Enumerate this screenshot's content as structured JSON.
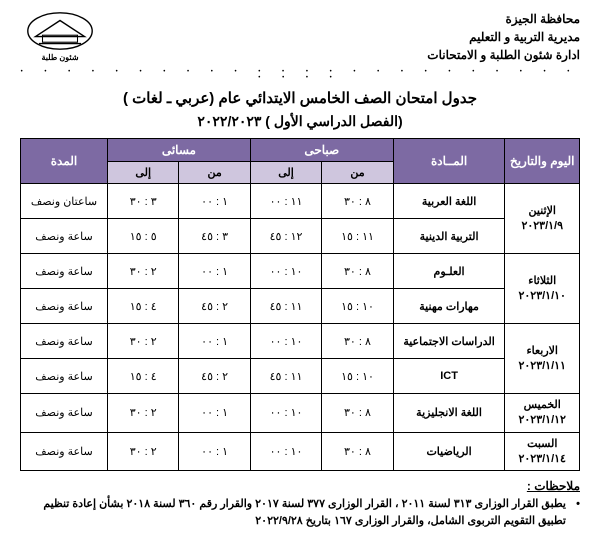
{
  "ministry": {
    "line1": "محافظة الجيزة",
    "line2": "مديرية التربية و التعليم",
    "line3": "ادارة شئون الطلبة و الامتحانات"
  },
  "logo_caption": "شئون طلبة",
  "title": "جدول امتحان الصف الخامس الايتدائي عام (عربي ـ لغات )",
  "subtitle": "(الفصل الدراسي الأول ) ٢٠٢٢/٢٠٢٣",
  "colors": {
    "header_main_bg": "#7d6aa3",
    "header_main_fg": "#ffffff",
    "header_sub_bg": "#cfc6de",
    "border": "#000000"
  },
  "columns": {
    "day": "اليوم والتاريخ",
    "subject": "المــادة",
    "morning": "صباحى",
    "evening": "مسائى",
    "from": "من",
    "to": "إلى",
    "duration": "المدة"
  },
  "days": [
    {
      "label": "الإثنين\n٢٠٢٣/١/٩",
      "rows": [
        {
          "subject": "اللغة العربية",
          "m_from": "٨ : ٣٠",
          "m_to": "١١ : ٠٠",
          "e_from": "١ : ٠٠",
          "e_to": "٣ : ٣٠",
          "duration": "ساعتان ونصف"
        },
        {
          "subject": "التربية الدينية",
          "m_from": "١١ : ١٥",
          "m_to": "١٢ : ٤٥",
          "e_from": "٣ : ٤٥",
          "e_to": "٥ : ١٥",
          "duration": "ساعة ونصف"
        }
      ]
    },
    {
      "label": "الثلاثاء\n٢٠٢٣/١/١٠",
      "rows": [
        {
          "subject": "العلـوم",
          "m_from": "٨ : ٣٠",
          "m_to": "١٠ : ٠٠",
          "e_from": "١ : ٠٠",
          "e_to": "٢ : ٣٠",
          "duration": "ساعة ونصف"
        },
        {
          "subject": "مهارات مهنية",
          "m_from": "١٠ : ١٥",
          "m_to": "١١ : ٤٥",
          "e_from": "٢ : ٤٥",
          "e_to": "٤ : ١٥",
          "duration": "ساعة ونصف"
        }
      ]
    },
    {
      "label": "الاربعاء\n٢٠٢٣/١/١١",
      "rows": [
        {
          "subject": "الدراسات الاجتماعية",
          "m_from": "٨ : ٣٠",
          "m_to": "١٠ : ٠٠",
          "e_from": "١ : ٠٠",
          "e_to": "٢ : ٣٠",
          "duration": "ساعة ونصف"
        },
        {
          "subject": "ICT",
          "m_from": "١٠ : ١٥",
          "m_to": "١١ : ٤٥",
          "e_from": "٢ : ٤٥",
          "e_to": "٤ : ١٥",
          "duration": "ساعة ونصف"
        }
      ]
    },
    {
      "label": "الخميس\n٢٠٢٣/١/١٢",
      "rows": [
        {
          "subject": "اللغة الانجليزية",
          "m_from": "٨ : ٣٠",
          "m_to": "١٠ : ٠٠",
          "e_from": "١ : ٠٠",
          "e_to": "٢ : ٣٠",
          "duration": "ساعة ونصف"
        }
      ]
    },
    {
      "label": "السبت\n٢٠٢٣/١/١٤",
      "rows": [
        {
          "subject": "الرياضيات",
          "m_from": "٨ : ٣٠",
          "m_to": "١٠ : ٠٠",
          "e_from": "١ : ٠٠",
          "e_to": "٢ : ٣٠",
          "duration": "ساعة ونصف"
        }
      ]
    }
  ],
  "notes": {
    "title": "ملاحظات :",
    "body": "يطبق القرار الوزارى ٣١٣ لسنة ٢٠١١ ، القرار الوزارى ٣٧٧ لسنة ٢٠١٧ والقرار رقم ٣٦٠ لسنة ٢٠١٨ بشأن إعادة تنظيم تطبيق التقويم التربوى الشامل، والقرار الوزارى ١٦٧ بتاريخ ٢٠٢٢/٩/٢٨"
  }
}
